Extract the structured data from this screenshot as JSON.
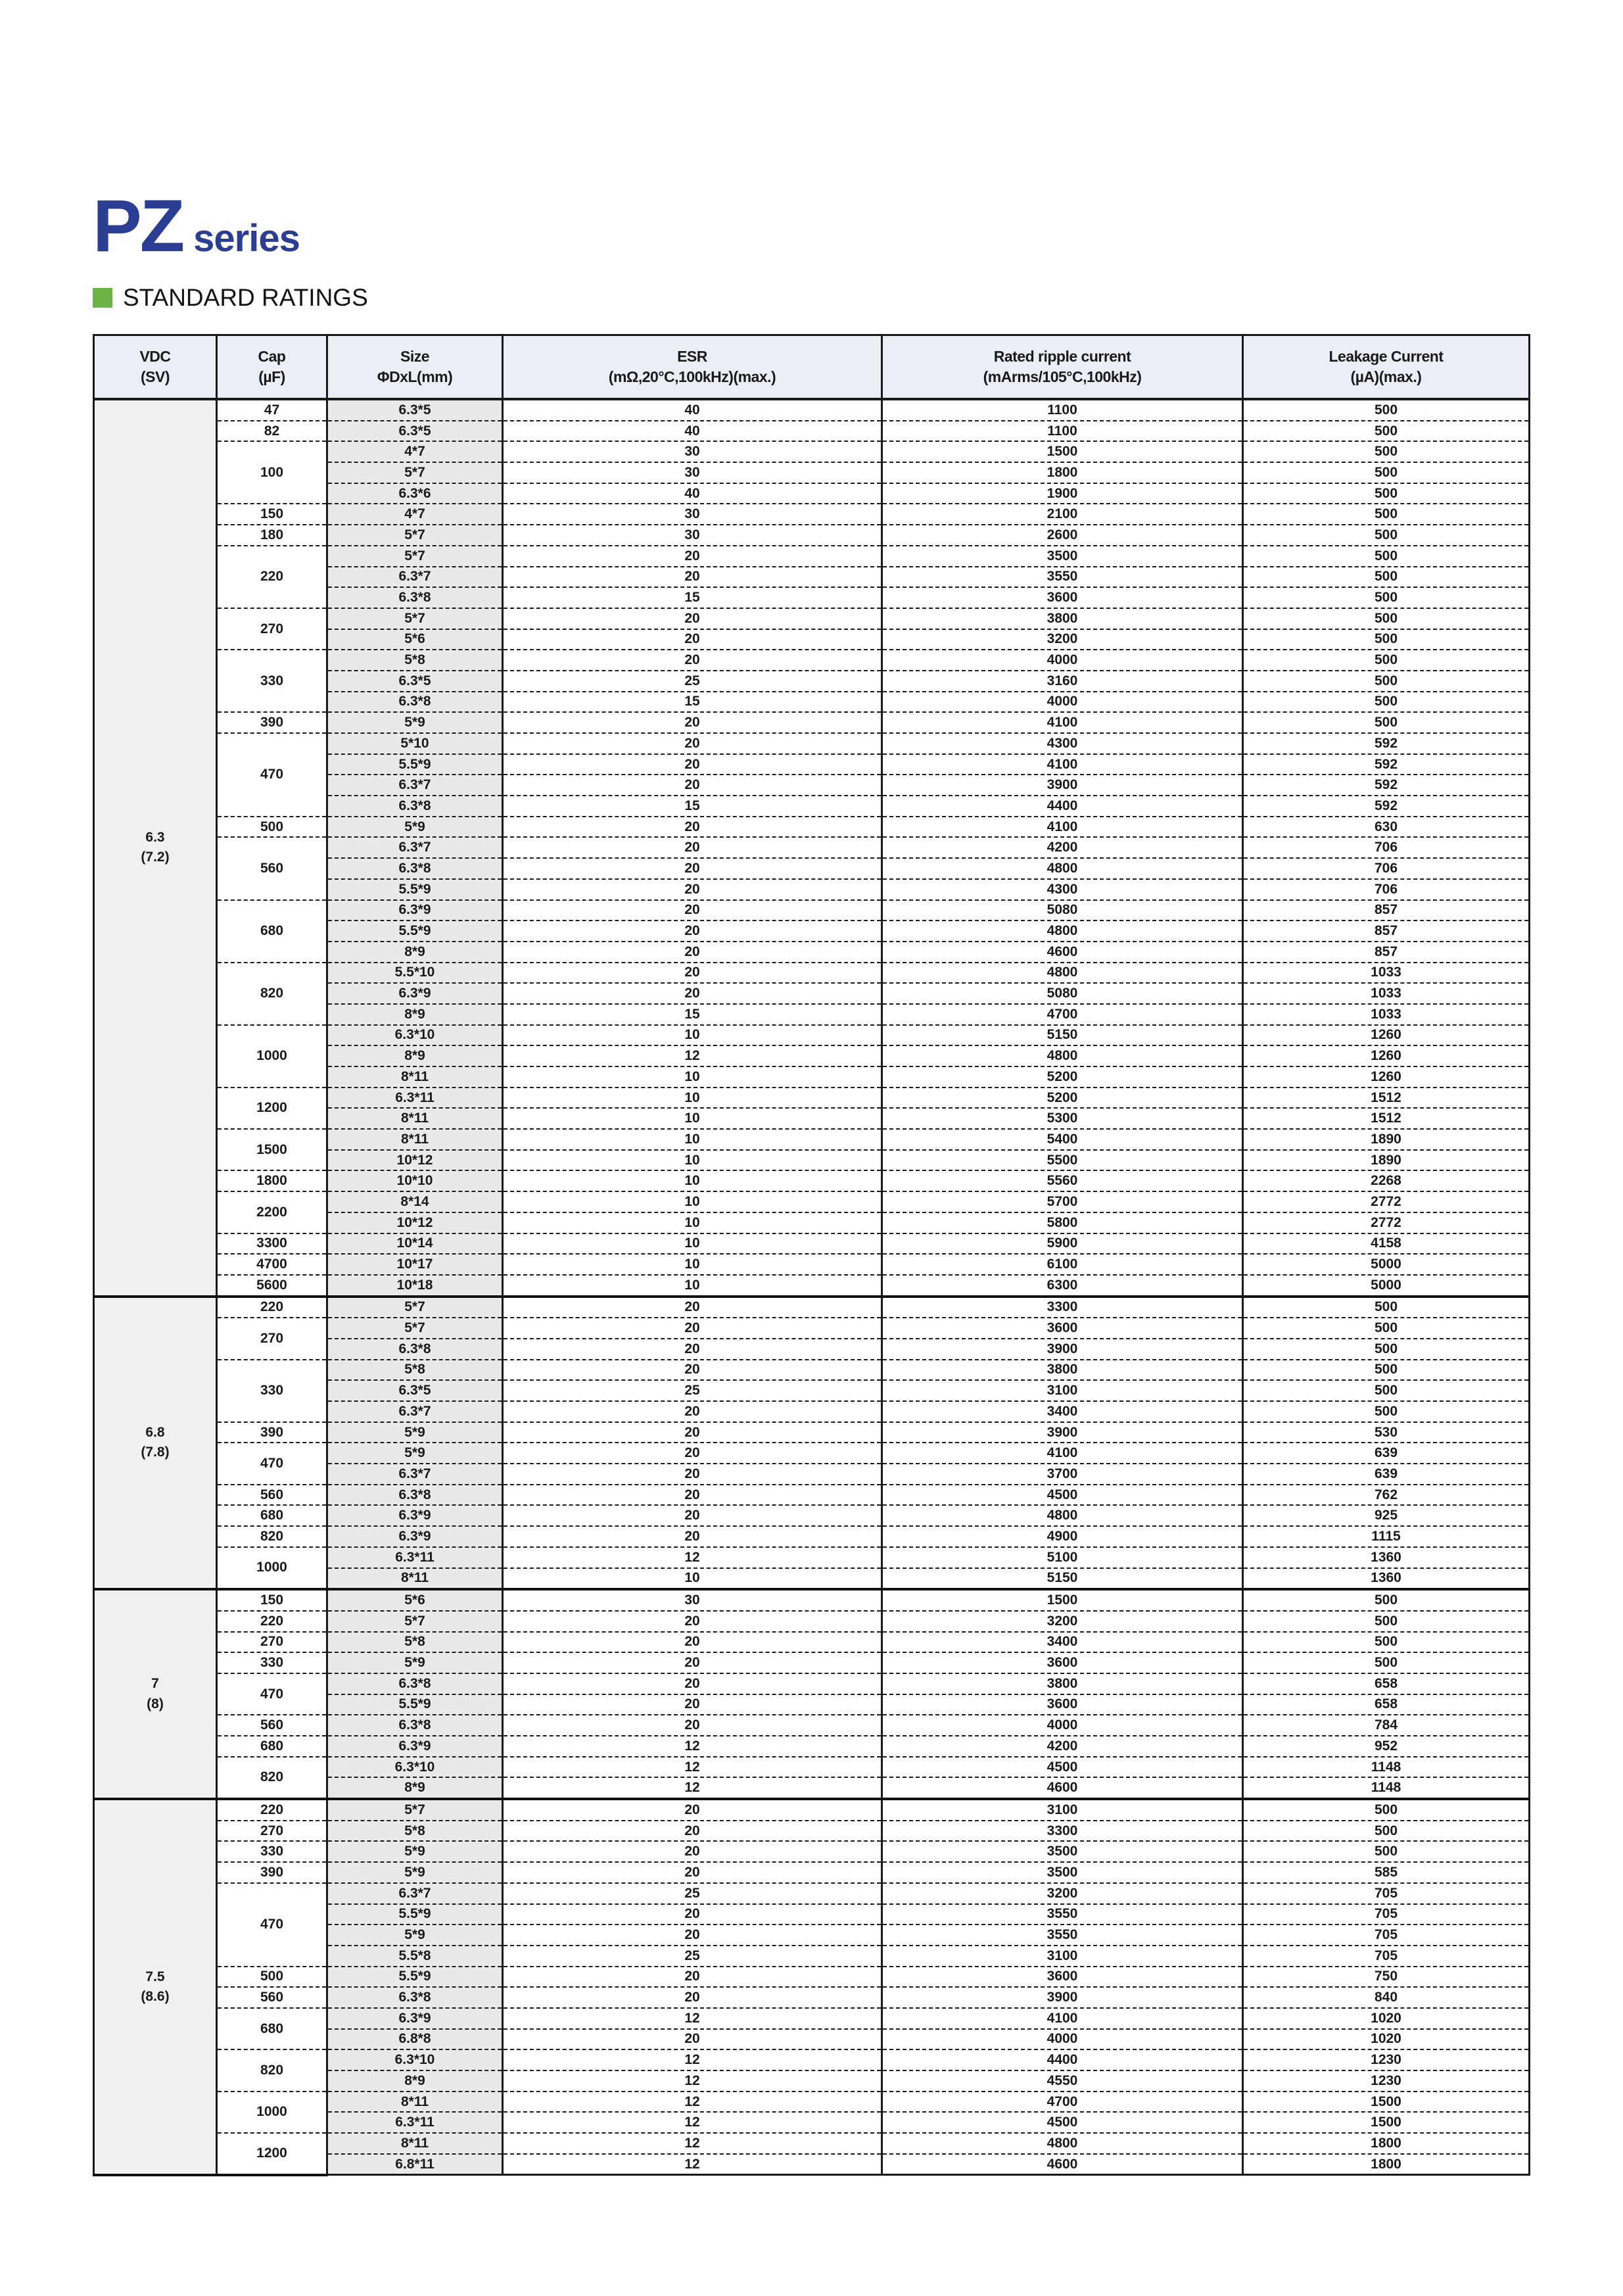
{
  "page": {
    "title_main": "PZ",
    "title_sub": "series",
    "section_heading": "STANDARD RATINGS",
    "colors": {
      "accent_blue": "#2b3e94",
      "accent_green": "#6cb448",
      "header_row_bg": "#eceef5",
      "shaded_column_bg": "#e9e9e9",
      "vdc_column_bg": "#f0f0f0"
    }
  },
  "table": {
    "headers": [
      {
        "l1": "VDC",
        "l2": "(SV)"
      },
      {
        "l1": "Cap",
        "l2": "(µF)"
      },
      {
        "l1": "Size",
        "l2": "ΦDxL(mm)"
      },
      {
        "l1": "ESR",
        "l2": "(mΩ,20°C,100kHz)(max.)"
      },
      {
        "l1": "Rated ripple current",
        "l2": "(mArms/105°C,100kHz)"
      },
      {
        "l1": "Leakage Current",
        "l2": "(µA)(max.)"
      }
    ],
    "groups": [
      {
        "vdc": "6.3",
        "sv": "(7.2)",
        "caps": [
          {
            "cap": "47",
            "rows": [
              [
                "6.3*5",
                "40",
                "1100",
                "500"
              ]
            ]
          },
          {
            "cap": "82",
            "rows": [
              [
                "6.3*5",
                "40",
                "1100",
                "500"
              ]
            ]
          },
          {
            "cap": "100",
            "rows": [
              [
                "4*7",
                "30",
                "1500",
                "500"
              ],
              [
                "5*7",
                "30",
                "1800",
                "500"
              ],
              [
                "6.3*6",
                "40",
                "1900",
                "500"
              ]
            ]
          },
          {
            "cap": "150",
            "rows": [
              [
                "4*7",
                "30",
                "2100",
                "500"
              ]
            ]
          },
          {
            "cap": "180",
            "rows": [
              [
                "5*7",
                "30",
                "2600",
                "500"
              ]
            ]
          },
          {
            "cap": "220",
            "rows": [
              [
                "5*7",
                "20",
                "3500",
                "500"
              ],
              [
                "6.3*7",
                "20",
                "3550",
                "500"
              ],
              [
                "6.3*8",
                "15",
                "3600",
                "500"
              ]
            ]
          },
          {
            "cap": "270",
            "rows": [
              [
                "5*7",
                "20",
                "3800",
                "500"
              ],
              [
                "5*6",
                "20",
                "3200",
                "500"
              ]
            ]
          },
          {
            "cap": "330",
            "rows": [
              [
                "5*8",
                "20",
                "4000",
                "500"
              ],
              [
                "6.3*5",
                "25",
                "3160",
                "500"
              ],
              [
                "6.3*8",
                "15",
                "4000",
                "500"
              ]
            ]
          },
          {
            "cap": "390",
            "rows": [
              [
                "5*9",
                "20",
                "4100",
                "500"
              ]
            ]
          },
          {
            "cap": "470",
            "rows": [
              [
                "5*10",
                "20",
                "4300",
                "592"
              ],
              [
                "5.5*9",
                "20",
                "4100",
                "592"
              ],
              [
                "6.3*7",
                "20",
                "3900",
                "592"
              ],
              [
                "6.3*8",
                "15",
                "4400",
                "592"
              ]
            ]
          },
          {
            "cap": "500",
            "rows": [
              [
                "5*9",
                "20",
                "4100",
                "630"
              ]
            ]
          },
          {
            "cap": "560",
            "rows": [
              [
                "6.3*7",
                "20",
                "4200",
                "706"
              ],
              [
                "6.3*8",
                "20",
                "4800",
                "706"
              ],
              [
                "5.5*9",
                "20",
                "4300",
                "706"
              ]
            ]
          },
          {
            "cap": "680",
            "rows": [
              [
                "6.3*9",
                "20",
                "5080",
                "857"
              ],
              [
                "5.5*9",
                "20",
                "4800",
                "857"
              ],
              [
                "8*9",
                "20",
                "4600",
                "857"
              ]
            ]
          },
          {
            "cap": "820",
            "rows": [
              [
                "5.5*10",
                "20",
                "4800",
                "1033"
              ],
              [
                "6.3*9",
                "20",
                "5080",
                "1033"
              ],
              [
                "8*9",
                "15",
                "4700",
                "1033"
              ]
            ]
          },
          {
            "cap": "1000",
            "rows": [
              [
                "6.3*10",
                "10",
                "5150",
                "1260"
              ],
              [
                "8*9",
                "12",
                "4800",
                "1260"
              ],
              [
                "8*11",
                "10",
                "5200",
                "1260"
              ]
            ]
          },
          {
            "cap": "1200",
            "rows": [
              [
                "6.3*11",
                "10",
                "5200",
                "1512"
              ],
              [
                "8*11",
                "10",
                "5300",
                "1512"
              ]
            ]
          },
          {
            "cap": "1500",
            "rows": [
              [
                "8*11",
                "10",
                "5400",
                "1890"
              ],
              [
                "10*12",
                "10",
                "5500",
                "1890"
              ]
            ]
          },
          {
            "cap": "1800",
            "rows": [
              [
                "10*10",
                "10",
                "5560",
                "2268"
              ]
            ]
          },
          {
            "cap": "2200",
            "rows": [
              [
                "8*14",
                "10",
                "5700",
                "2772"
              ],
              [
                "10*12",
                "10",
                "5800",
                "2772"
              ]
            ]
          },
          {
            "cap": "3300",
            "rows": [
              [
                "10*14",
                "10",
                "5900",
                "4158"
              ]
            ]
          },
          {
            "cap": "4700",
            "rows": [
              [
                "10*17",
                "10",
                "6100",
                "5000"
              ]
            ]
          },
          {
            "cap": "5600",
            "rows": [
              [
                "10*18",
                "10",
                "6300",
                "5000"
              ]
            ]
          }
        ]
      },
      {
        "vdc": "6.8",
        "sv": "(7.8)",
        "caps": [
          {
            "cap": "220",
            "rows": [
              [
                "5*7",
                "20",
                "3300",
                "500"
              ]
            ]
          },
          {
            "cap": "270",
            "rows": [
              [
                "5*7",
                "20",
                "3600",
                "500"
              ],
              [
                "6.3*8",
                "20",
                "3900",
                "500"
              ]
            ]
          },
          {
            "cap": "330",
            "rows": [
              [
                "5*8",
                "20",
                "3800",
                "500"
              ],
              [
                "6.3*5",
                "25",
                "3100",
                "500"
              ],
              [
                "6.3*7",
                "20",
                "3400",
                "500"
              ]
            ]
          },
          {
            "cap": "390",
            "rows": [
              [
                "5*9",
                "20",
                "3900",
                "530"
              ]
            ]
          },
          {
            "cap": "470",
            "rows": [
              [
                "5*9",
                "20",
                "4100",
                "639"
              ],
              [
                "6.3*7",
                "20",
                "3700",
                "639"
              ]
            ]
          },
          {
            "cap": "560",
            "rows": [
              [
                "6.3*8",
                "20",
                "4500",
                "762"
              ]
            ]
          },
          {
            "cap": "680",
            "rows": [
              [
                "6.3*9",
                "20",
                "4800",
                "925"
              ]
            ]
          },
          {
            "cap": "820",
            "rows": [
              [
                "6.3*9",
                "20",
                "4900",
                "1115"
              ]
            ]
          },
          {
            "cap": "1000",
            "rows": [
              [
                "6.3*11",
                "12",
                "5100",
                "1360"
              ],
              [
                "8*11",
                "10",
                "5150",
                "1360"
              ]
            ]
          }
        ]
      },
      {
        "vdc": "7",
        "sv": "(8)",
        "caps": [
          {
            "cap": "150",
            "rows": [
              [
                "5*6",
                "30",
                "1500",
                "500"
              ]
            ]
          },
          {
            "cap": "220",
            "rows": [
              [
                "5*7",
                "20",
                "3200",
                "500"
              ]
            ]
          },
          {
            "cap": "270",
            "rows": [
              [
                "5*8",
                "20",
                "3400",
                "500"
              ]
            ]
          },
          {
            "cap": "330",
            "rows": [
              [
                "5*9",
                "20",
                "3600",
                "500"
              ]
            ]
          },
          {
            "cap": "470",
            "rows": [
              [
                "6.3*8",
                "20",
                "3800",
                "658"
              ],
              [
                "5.5*9",
                "20",
                "3600",
                "658"
              ]
            ]
          },
          {
            "cap": "560",
            "rows": [
              [
                "6.3*8",
                "20",
                "4000",
                "784"
              ]
            ]
          },
          {
            "cap": "680",
            "rows": [
              [
                "6.3*9",
                "12",
                "4200",
                "952"
              ]
            ]
          },
          {
            "cap": "820",
            "rows": [
              [
                "6.3*10",
                "12",
                "4500",
                "1148"
              ],
              [
                "8*9",
                "12",
                "4600",
                "1148"
              ]
            ]
          }
        ]
      },
      {
        "vdc": "7.5",
        "sv": "(8.6)",
        "caps": [
          {
            "cap": "220",
            "rows": [
              [
                "5*7",
                "20",
                "3100",
                "500"
              ]
            ]
          },
          {
            "cap": "270",
            "rows": [
              [
                "5*8",
                "20",
                "3300",
                "500"
              ]
            ]
          },
          {
            "cap": "330",
            "rows": [
              [
                "5*9",
                "20",
                "3500",
                "500"
              ]
            ]
          },
          {
            "cap": "390",
            "rows": [
              [
                "5*9",
                "20",
                "3500",
                "585"
              ]
            ]
          },
          {
            "cap": "470",
            "rows": [
              [
                "6.3*7",
                "25",
                "3200",
                "705"
              ],
              [
                "5.5*9",
                "20",
                "3550",
                "705"
              ],
              [
                "5*9",
                "20",
                "3550",
                "705"
              ],
              [
                "5.5*8",
                "25",
                "3100",
                "705"
              ]
            ]
          },
          {
            "cap": "500",
            "rows": [
              [
                "5.5*9",
                "20",
                "3600",
                "750"
              ]
            ]
          },
          {
            "cap": "560",
            "rows": [
              [
                "6.3*8",
                "20",
                "3900",
                "840"
              ]
            ]
          },
          {
            "cap": "680",
            "rows": [
              [
                "6.3*9",
                "12",
                "4100",
                "1020"
              ],
              [
                "6.8*8",
                "20",
                "4000",
                "1020"
              ]
            ]
          },
          {
            "cap": "820",
            "rows": [
              [
                "6.3*10",
                "12",
                "4400",
                "1230"
              ],
              [
                "8*9",
                "12",
                "4550",
                "1230"
              ]
            ]
          },
          {
            "cap": "1000",
            "rows": [
              [
                "8*11",
                "12",
                "4700",
                "1500"
              ],
              [
                "6.3*11",
                "12",
                "4500",
                "1500"
              ]
            ]
          },
          {
            "cap": "1200",
            "rows": [
              [
                "8*11",
                "12",
                "4800",
                "1800"
              ],
              [
                "6.8*11",
                "12",
                "4600",
                "1800"
              ]
            ]
          }
        ]
      }
    ]
  }
}
